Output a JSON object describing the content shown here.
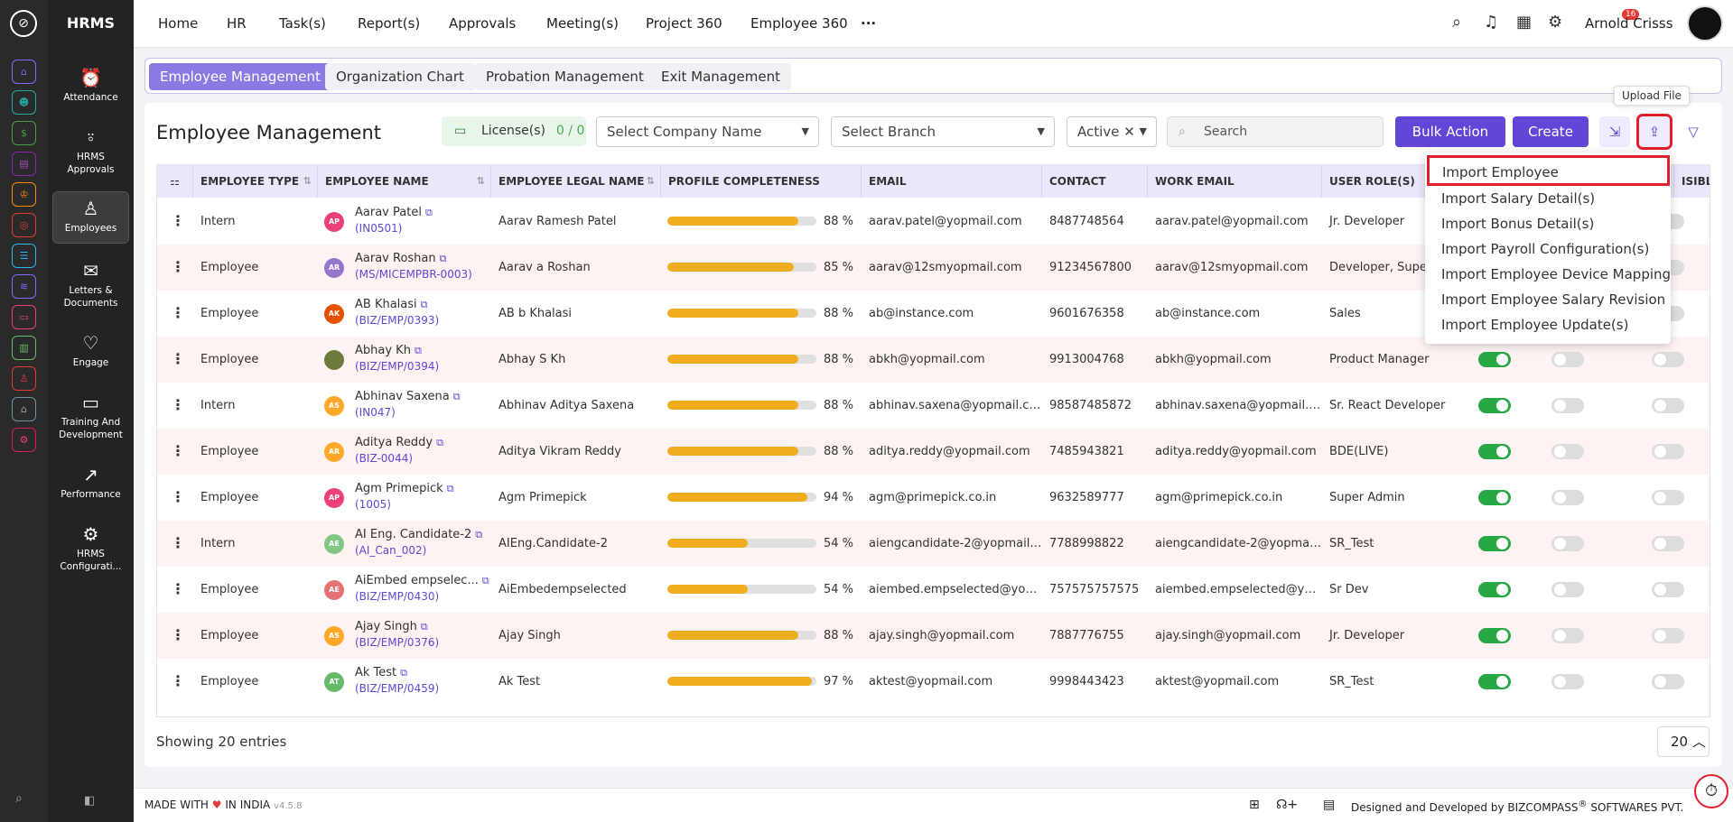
{
  "brand": "HRMS",
  "nav": [
    {
      "icon": "alarm-clock-icon",
      "label": "Attendance"
    },
    {
      "icon": "user-check-icon",
      "label": "HRMS Approvals"
    },
    {
      "icon": "user-icon",
      "label": "Employees"
    },
    {
      "icon": "mailbox-icon",
      "label": "Letters & Documents"
    },
    {
      "icon": "handshake-icon",
      "label": "Engage"
    },
    {
      "icon": "presentation-icon",
      "label": "Training And Development"
    },
    {
      "icon": "trend-chart-icon",
      "label": "Performance"
    },
    {
      "icon": "gear-icon",
      "label": "HRMS Configurati..."
    }
  ],
  "top_menu": [
    "Home",
    "HR",
    "Task(s)",
    "Report(s)",
    "Approvals",
    "Meeting(s)",
    "Project 360",
    "Employee 360"
  ],
  "notifications_count": "16",
  "user_name": "Arnold Crisss",
  "tabs": [
    "Employee Management",
    "Organization Chart",
    "Probation Management",
    "Exit Management"
  ],
  "page_title": "Employee Management",
  "license": {
    "label": "License(s)",
    "count": "0 / 0"
  },
  "filters": {
    "company": "Select Company Name",
    "branch": "Select Branch",
    "status": "Active"
  },
  "search_placeholder": "Search",
  "buttons": {
    "bulk": "Bulk Action",
    "create": "Create"
  },
  "tooltip": "Upload File",
  "columns": [
    "EMPLOYEE TYPE",
    "EMPLOYEE NAME",
    "EMPLOYEE LEGAL NAME",
    "PROFILE COMPLETENESS",
    "EMAIL",
    "CONTACT",
    "WORK EMAIL",
    "USER ROLE(S)",
    "ISIBLE"
  ],
  "rows": [
    {
      "type": "Intern",
      "initials": "AP",
      "avatar_color": "#ec407a",
      "name": "Aarav Patel",
      "code": "(IN0501)",
      "legal": "Aarav Ramesh Patel",
      "pct": 88,
      "pct_label": "88 %",
      "email": "aarav.patel@yopmail.com",
      "contact": "8487748564",
      "work_email": "aarav.patel@yopmail.com",
      "role": "Jr. Developer",
      "t1": true,
      "t2": false,
      "t3": false
    },
    {
      "type": "Employee",
      "initials": "AR",
      "avatar_color": "#9575cd",
      "name": "Aarav Roshan",
      "code": "(MS/MICEMPBR-0003)",
      "legal": "Aarav a Roshan",
      "pct": 85,
      "pct_label": "85 %",
      "email": "aarav@12smyopmail.com",
      "contact": "91234567800",
      "work_email": "aarav@12smyopmail.com",
      "role": "Developer, Super",
      "t1": true,
      "t2": false,
      "t3": false
    },
    {
      "type": "Employee",
      "initials": "AK",
      "avatar_color": "#e65100",
      "name": "AB Khalasi",
      "code": "(BIZ/EMP/0393)",
      "legal": "AB b Khalasi",
      "pct": 88,
      "pct_label": "88 %",
      "email": "ab@instance.com",
      "contact": "9601676358",
      "work_email": "ab@instance.com",
      "role": "Sales",
      "t1": true,
      "t2": false,
      "t3": false
    },
    {
      "type": "Employee",
      "initials": "",
      "avatar_color": "#6d7b3a",
      "name": "Abhay Kh",
      "code": "(BIZ/EMP/0394)",
      "legal": "Abhay S Kh",
      "pct": 88,
      "pct_label": "88 %",
      "email": "abkh@yopmail.com",
      "contact": "9913004768",
      "work_email": "abkh@yopmail.com",
      "role": "Product Manager",
      "t1": true,
      "t2": false,
      "t3": false
    },
    {
      "type": "Intern",
      "initials": "AS",
      "avatar_color": "#ffa726",
      "name": "Abhinav Saxena",
      "code": "(IN047)",
      "legal": "Abhinav Aditya Saxena",
      "pct": 88,
      "pct_label": "88 %",
      "email": "abhinav.saxena@yopmail.com",
      "contact": "98587485872",
      "work_email": "abhinav.saxena@yopmail.com",
      "role": "Sr. React Developer",
      "t1": true,
      "t2": false,
      "t3": false
    },
    {
      "type": "Employee",
      "initials": "AR",
      "avatar_color": "#ffa726",
      "name": "Aditya Reddy",
      "code": "(BIZ-0044)",
      "legal": "Aditya Vikram Reddy",
      "pct": 88,
      "pct_label": "88 %",
      "email": "aditya.reddy@yopmail.com",
      "contact": "7485943821",
      "work_email": "aditya.reddy@yopmail.com",
      "role": "BDE(LIVE)",
      "t1": true,
      "t2": false,
      "t3": false
    },
    {
      "type": "Employee",
      "initials": "AP",
      "avatar_color": "#ec407a",
      "name": "Agm Primepick",
      "code": "(1005)",
      "legal": "Agm Primepick",
      "pct": 94,
      "pct_label": "94 %",
      "email": "agm@primepick.co.in",
      "contact": "9632589777",
      "work_email": "agm@primepick.co.in",
      "role": "Super Admin",
      "t1": true,
      "t2": false,
      "t3": false
    },
    {
      "type": "Intern",
      "initials": "AE",
      "avatar_color": "#81c784",
      "name": "AI Eng. Candidate-2",
      "code": "(AI_Can_002)",
      "legal": "AIEng.Candidate-2",
      "pct": 54,
      "pct_label": "54 %",
      "email": "aiengcandidate-2@yopmail....",
      "contact": "7788998822",
      "work_email": "aiengcandidate-2@yopmail....",
      "role": "SR_Test",
      "t1": true,
      "t2": false,
      "t3": false
    },
    {
      "type": "Employee",
      "initials": "AE",
      "avatar_color": "#e57373",
      "name": "AiEmbed empselec...",
      "code": "(BIZ/EMP/0430)",
      "legal": "AiEmbedempselected",
      "pct": 54,
      "pct_label": "54 %",
      "email": "aiembed.empselected@yop...",
      "contact": "757575757575",
      "work_email": "aiembed.empselected@yop...",
      "role": "Sr Dev",
      "t1": true,
      "t2": false,
      "t3": false
    },
    {
      "type": "Employee",
      "initials": "AS",
      "avatar_color": "#ffa726",
      "name": "Ajay Singh",
      "code": "(BIZ/EMP/0376)",
      "legal": "Ajay Singh",
      "pct": 88,
      "pct_label": "88 %",
      "email": "ajay.singh@yopmail.com",
      "contact": "7887776755",
      "work_email": "ajay.singh@yopmail.com",
      "role": "Jr. Developer",
      "t1": true,
      "t2": false,
      "t3": false
    },
    {
      "type": "Employee",
      "initials": "AT",
      "avatar_color": "#66bb6a",
      "name": "Ak Test",
      "code": "(BIZ/EMP/0459)",
      "legal": "Ak Test",
      "pct": 97,
      "pct_label": "97 %",
      "email": "aktest@yopmail.com",
      "contact": "9998443423",
      "work_email": "aktest@yopmail.com",
      "role": "SR_Test",
      "t1": true,
      "t2": false,
      "t3": false
    }
  ],
  "import_menu": [
    "Import Employee",
    "Import Salary Detail(s)",
    "Import Bonus Detail(s)",
    "Import Payroll Configuration(s)",
    "Import Employee Device Mapping",
    "Import Employee Salary Revision",
    "Import Employee Update(s)"
  ],
  "showing": "Showing 20 entries",
  "page_size": "20",
  "footer": {
    "made_prefix": "MADE WITH",
    "made_suffix": "IN INDIA",
    "version": "v4.5.8",
    "designed": "Designed and Developed by",
    "company": "BIZCOMPASS",
    "company2": "SOFTWARES PVT."
  }
}
